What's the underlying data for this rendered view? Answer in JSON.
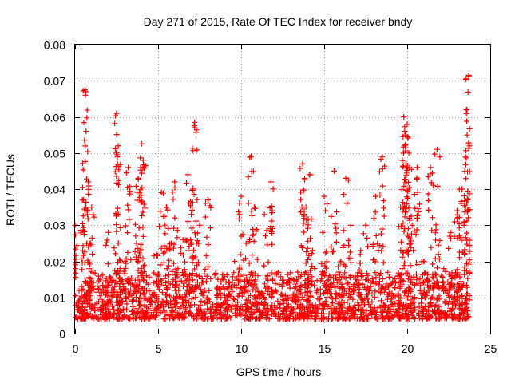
{
  "chart_data": {
    "type": "scatter",
    "title": "Day 271 of 2015, Rate Of TEC Index for receiver bndy",
    "xlabel": "GPS time / hours",
    "ylabel": "ROTI / TECUs",
    "xlim": [
      0,
      25
    ],
    "ylim": [
      0,
      0.08
    ],
    "xticks": [
      "0",
      "5",
      "10",
      "15",
      "20",
      "25"
    ],
    "yticks": [
      "0",
      "0.01",
      "0.02",
      "0.03",
      "0.04",
      "0.05",
      "0.06",
      "0.07",
      "0.08"
    ],
    "grid": true,
    "marker": "+",
    "color": "#ff0000",
    "series": [
      {
        "name": "ROTI",
        "x": [
          0.0,
          0.2,
          0.4,
          0.5,
          0.6,
          0.7,
          0.8,
          0.9,
          1.0,
          1.2,
          1.5,
          1.8,
          2.0,
          2.2,
          2.5,
          2.6,
          2.7,
          2.8,
          3.0,
          3.2,
          3.5,
          3.7,
          3.8,
          4.0,
          4.1,
          4.3,
          4.6,
          4.9,
          5.2,
          5.5,
          5.8,
          6.0,
          6.2,
          6.5,
          6.8,
          7.0,
          7.2,
          7.5,
          7.8,
          8.0,
          8.3,
          8.6,
          9.0,
          9.3,
          9.6,
          10.0,
          10.3,
          10.6,
          10.8,
          11.0,
          11.4,
          11.8,
          12.2,
          12.6,
          13.0,
          13.4,
          13.7,
          13.9,
          14.1,
          14.3,
          14.6,
          15.0,
          15.3,
          15.6,
          16.0,
          16.3,
          16.6,
          16.9,
          17.2,
          17.5,
          17.8,
          18.1,
          18.5,
          18.9,
          19.3,
          19.6,
          19.8,
          19.9,
          20.0,
          20.1,
          20.3,
          20.6,
          21.0,
          21.4,
          21.8,
          22.2,
          22.6,
          23.0,
          23.3,
          23.5,
          23.6,
          23.7
        ],
        "y": [
          0.03,
          0.009,
          0.012,
          0.037,
          0.0675,
          0.025,
          0.042,
          0.011,
          0.035,
          0.008,
          0.015,
          0.009,
          0.028,
          0.012,
          0.061,
          0.052,
          0.018,
          0.009,
          0.02,
          0.046,
          0.013,
          0.025,
          0.043,
          0.0525,
          0.048,
          0.016,
          0.009,
          0.022,
          0.039,
          0.035,
          0.025,
          0.042,
          0.018,
          0.026,
          0.044,
          0.033,
          0.0585,
          0.03,
          0.012,
          0.037,
          0.008,
          0.015,
          0.01,
          0.014,
          0.02,
          0.038,
          0.025,
          0.049,
          0.035,
          0.012,
          0.033,
          0.042,
          0.009,
          0.007,
          0.01,
          0.017,
          0.047,
          0.035,
          0.044,
          0.023,
          0.012,
          0.038,
          0.016,
          0.045,
          0.02,
          0.043,
          0.03,
          0.015,
          0.023,
          0.03,
          0.013,
          0.038,
          0.049,
          0.011,
          0.014,
          0.035,
          0.06,
          0.055,
          0.058,
          0.05,
          0.03,
          0.046,
          0.02,
          0.046,
          0.051,
          0.018,
          0.028,
          0.034,
          0.04,
          0.049,
          0.062,
          0.0715
        ],
        "baseline_min": 0.004,
        "baseline_max": 0.014
      }
    ]
  }
}
